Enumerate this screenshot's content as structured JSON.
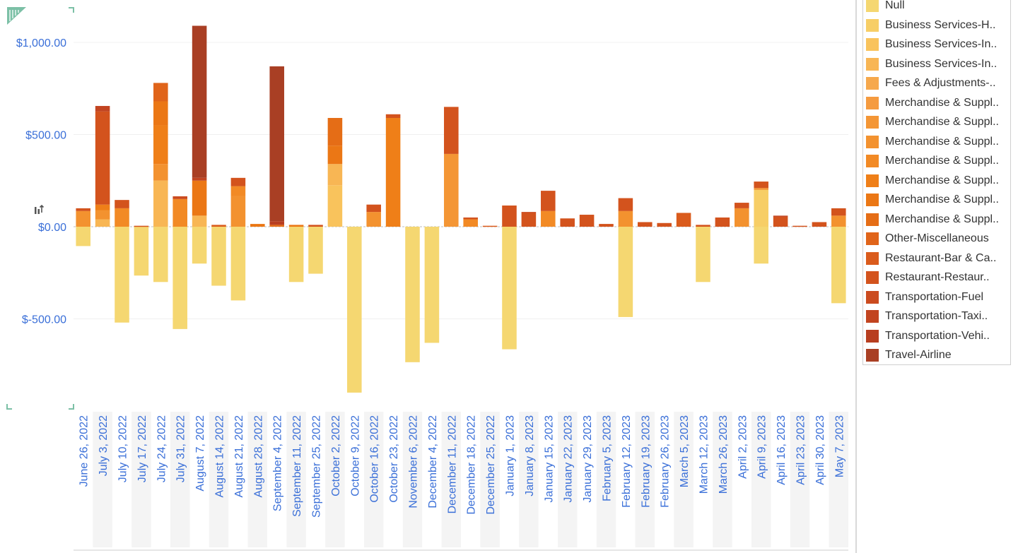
{
  "chart_data": {
    "type": "bar",
    "stacked": true,
    "ylim": [
      -900,
      1100
    ],
    "yticks": [
      {
        "value": 1000,
        "label": "$1,000.00"
      },
      {
        "value": 500,
        "label": "$500.00"
      },
      {
        "value": 0,
        "label": "$0.00"
      },
      {
        "value": -500,
        "label": "$-500.00"
      }
    ],
    "categories": [
      "June 26, 2022",
      "July 3, 2022",
      "July 10, 2022",
      "July 17, 2022",
      "July 24, 2022",
      "July 31, 2022",
      "August 7, 2022",
      "August 14, 2022",
      "August 21, 2022",
      "August 28, 2022",
      "September 4, 2022",
      "September 11, 2022",
      "September 25, 2022",
      "October 2, 2022",
      "October 9, 2022",
      "October 16, 2022",
      "October 23, 2022",
      "November 6, 2022",
      "December 4, 2022",
      "December 11, 2022",
      "December 18, 2022",
      "December 25, 2022",
      "January 1, 2023",
      "January 8, 2023",
      "January 15, 2023",
      "January 22, 2023",
      "January 29, 2023",
      "February 5, 2023",
      "February 12, 2023",
      "February 19, 2023",
      "February 26, 2023",
      "March 5, 2023",
      "March 12, 2023",
      "March 26, 2023",
      "April 2, 2023",
      "April 9, 2023",
      "April 16, 2023",
      "April 23, 2023",
      "April 30, 2023",
      "May 7, 2023"
    ],
    "legend_position": "right",
    "grid": true,
    "series": [
      {
        "name": "Null",
        "color": "#f5d771",
        "values": [
          -105,
          0,
          -520,
          -265,
          -300,
          -555,
          -200,
          -320,
          -400,
          0,
          0,
          -300,
          -255,
          0,
          -900,
          0,
          0,
          -735,
          -630,
          0,
          0,
          0,
          -665,
          0,
          0,
          0,
          0,
          0,
          -490,
          0,
          0,
          0,
          -300,
          0,
          0,
          -200,
          0,
          0,
          0,
          -415
        ]
      },
      {
        "name": "Business Services-H..",
        "color": "#f7ce66",
        "values": [
          0,
          0,
          0,
          0,
          0,
          0,
          0,
          0,
          0,
          0,
          0,
          0,
          0,
          0,
          0,
          0,
          0,
          0,
          0,
          0,
          0,
          0,
          0,
          0,
          0,
          0,
          0,
          0,
          0,
          0,
          0,
          0,
          0,
          0,
          0,
          200,
          0,
          0,
          0,
          0
        ]
      },
      {
        "name": "Business Services-In..",
        "color": "#f9c35c",
        "values": [
          0,
          0,
          0,
          0,
          0,
          0,
          0,
          0,
          0,
          0,
          0,
          0,
          0,
          225,
          0,
          0,
          0,
          0,
          0,
          0,
          0,
          0,
          0,
          0,
          0,
          0,
          0,
          0,
          0,
          0,
          0,
          0,
          0,
          0,
          0,
          0,
          0,
          0,
          0,
          0
        ]
      },
      {
        "name": "Business Services-In..",
        "color": "#f8b654",
        "values": [
          0,
          40,
          0,
          0,
          250,
          0,
          60,
          0,
          0,
          0,
          0,
          0,
          0,
          115,
          0,
          0,
          0,
          0,
          0,
          0,
          0,
          0,
          0,
          0,
          0,
          0,
          0,
          0,
          0,
          0,
          0,
          0,
          0,
          0,
          0,
          0,
          0,
          0,
          0,
          0
        ]
      },
      {
        "name": "Fees & Adjustments-..",
        "color": "#f6a84c",
        "values": [
          0,
          0,
          0,
          0,
          0,
          0,
          0,
          0,
          0,
          0,
          0,
          0,
          0,
          0,
          0,
          0,
          0,
          0,
          0,
          0,
          0,
          0,
          0,
          0,
          0,
          0,
          0,
          0,
          0,
          0,
          0,
          0,
          0,
          0,
          0,
          0,
          0,
          0,
          0,
          0
        ]
      },
      {
        "name": "Merchandise & Suppl..",
        "color": "#f59b3f",
        "values": [
          0,
          0,
          0,
          0,
          0,
          0,
          0,
          0,
          0,
          0,
          0,
          0,
          0,
          0,
          0,
          0,
          0,
          0,
          0,
          0,
          0,
          0,
          0,
          0,
          0,
          0,
          0,
          0,
          0,
          0,
          0,
          0,
          0,
          0,
          0,
          0,
          0,
          0,
          0,
          0
        ]
      },
      {
        "name": "Merchandise & Suppl..",
        "color": "#f49635",
        "values": [
          0,
          0,
          0,
          0,
          0,
          0,
          0,
          0,
          0,
          0,
          0,
          0,
          0,
          0,
          0,
          0,
          0,
          0,
          0,
          395,
          0,
          0,
          0,
          0,
          0,
          0,
          0,
          0,
          0,
          0,
          0,
          0,
          0,
          0,
          0,
          0,
          0,
          0,
          0,
          0
        ]
      },
      {
        "name": "Merchandise & Suppl..",
        "color": "#f3922f",
        "values": [
          85,
          50,
          0,
          0,
          90,
          0,
          0,
          0,
          165,
          0,
          0,
          0,
          0,
          0,
          0,
          80,
          0,
          0,
          0,
          0,
          0,
          0,
          0,
          0,
          0,
          0,
          0,
          0,
          85,
          0,
          0,
          0,
          0,
          0,
          100,
          10,
          0,
          0,
          0,
          60
        ]
      },
      {
        "name": "Merchandise & Suppl..",
        "color": "#f28a25",
        "values": [
          0,
          0,
          100,
          0,
          0,
          150,
          0,
          0,
          55,
          0,
          0,
          0,
          0,
          0,
          0,
          0,
          0,
          0,
          0,
          0,
          40,
          0,
          0,
          0,
          85,
          0,
          0,
          0,
          0,
          0,
          0,
          0,
          0,
          0,
          0,
          0,
          0,
          0,
          0,
          0
        ]
      },
      {
        "name": "Merchandise & Suppl..",
        "color": "#ef7f18",
        "values": [
          0,
          30,
          0,
          0,
          210,
          0,
          0,
          0,
          0,
          0,
          0,
          0,
          0,
          0,
          0,
          0,
          590,
          0,
          0,
          0,
          0,
          0,
          0,
          0,
          0,
          0,
          0,
          0,
          0,
          0,
          0,
          0,
          0,
          0,
          0,
          0,
          0,
          0,
          0,
          0
        ]
      },
      {
        "name": "Merchandise & Suppl..",
        "color": "#eb7715",
        "values": [
          0,
          0,
          0,
          0,
          130,
          0,
          190,
          0,
          0,
          15,
          0,
          10,
          0,
          100,
          0,
          0,
          0,
          0,
          0,
          0,
          0,
          0,
          0,
          0,
          0,
          0,
          0,
          0,
          0,
          0,
          0,
          0,
          0,
          0,
          0,
          0,
          0,
          0,
          0,
          0
        ]
      },
      {
        "name": "Merchandise & Suppl..",
        "color": "#e56d16",
        "values": [
          0,
          0,
          0,
          0,
          0,
          0,
          0,
          0,
          0,
          0,
          10,
          0,
          0,
          150,
          0,
          0,
          0,
          0,
          0,
          0,
          0,
          0,
          0,
          0,
          0,
          0,
          0,
          0,
          0,
          0,
          0,
          0,
          0,
          0,
          0,
          0,
          0,
          0,
          0,
          0
        ]
      },
      {
        "name": "Other-Miscellaneous",
        "color": "#e0641a",
        "values": [
          0,
          0,
          0,
          0,
          100,
          0,
          0,
          0,
          0,
          0,
          0,
          0,
          0,
          0,
          0,
          0,
          0,
          0,
          0,
          0,
          0,
          0,
          0,
          0,
          0,
          0,
          0,
          0,
          0,
          0,
          0,
          0,
          0,
          0,
          0,
          0,
          0,
          0,
          0,
          0
        ]
      },
      {
        "name": "Restaurant-Bar & Ca..",
        "color": "#da5b1c",
        "values": [
          0,
          0,
          0,
          0,
          0,
          0,
          0,
          10,
          0,
          0,
          0,
          0,
          0,
          0,
          0,
          0,
          0,
          0,
          0,
          0,
          0,
          5,
          0,
          0,
          0,
          0,
          0,
          0,
          0,
          0,
          0,
          75,
          0,
          0,
          0,
          0,
          0,
          0,
          0,
          0
        ]
      },
      {
        "name": "Restaurant-Restaur..",
        "color": "#d3531d",
        "values": [
          15,
          505,
          45,
          5,
          0,
          0,
          0,
          0,
          45,
          0,
          0,
          0,
          10,
          0,
          0,
          40,
          20,
          0,
          0,
          255,
          10,
          0,
          115,
          75,
          110,
          45,
          65,
          15,
          70,
          25,
          20,
          0,
          10,
          50,
          30,
          35,
          55,
          5,
          25,
          40
        ]
      },
      {
        "name": "Transportation-Fuel",
        "color": "#cb4b1f",
        "values": [
          0,
          0,
          0,
          0,
          0,
          15,
          0,
          0,
          0,
          0,
          0,
          0,
          0,
          0,
          0,
          0,
          0,
          0,
          0,
          0,
          0,
          0,
          0,
          5,
          0,
          0,
          0,
          0,
          0,
          0,
          0,
          0,
          0,
          0,
          0,
          0,
          0,
          0,
          0,
          0
        ]
      },
      {
        "name": "Transportation-Taxi..",
        "color": "#c24420",
        "values": [
          0,
          30,
          0,
          0,
          0,
          0,
          15,
          0,
          0,
          0,
          0,
          0,
          0,
          0,
          0,
          0,
          0,
          0,
          0,
          0,
          0,
          0,
          0,
          0,
          0,
          0,
          0,
          0,
          0,
          0,
          0,
          0,
          0,
          0,
          0,
          0,
          5,
          0,
          0,
          0
        ]
      },
      {
        "name": "Transportation-Vehi..",
        "color": "#b83e20",
        "values": [
          0,
          0,
          0,
          0,
          0,
          0,
          0,
          0,
          0,
          0,
          20,
          0,
          0,
          0,
          0,
          0,
          0,
          0,
          0,
          0,
          0,
          0,
          0,
          0,
          0,
          0,
          0,
          0,
          0,
          0,
          0,
          0,
          0,
          0,
          0,
          0,
          0,
          0,
          0,
          0
        ]
      },
      {
        "name": "Travel-Airline",
        "color": "#a93f24",
        "values": [
          0,
          0,
          0,
          0,
          0,
          0,
          825,
          0,
          0,
          0,
          840,
          0,
          0,
          0,
          0,
          0,
          0,
          0,
          0,
          0,
          0,
          0,
          0,
          0,
          0,
          0,
          0,
          0,
          0,
          0,
          0,
          0,
          0,
          0,
          0,
          0,
          0,
          0,
          0,
          0
        ]
      }
    ]
  },
  "icons": {
    "corner": "chart-corner-icon",
    "sort": "sort-icon"
  }
}
